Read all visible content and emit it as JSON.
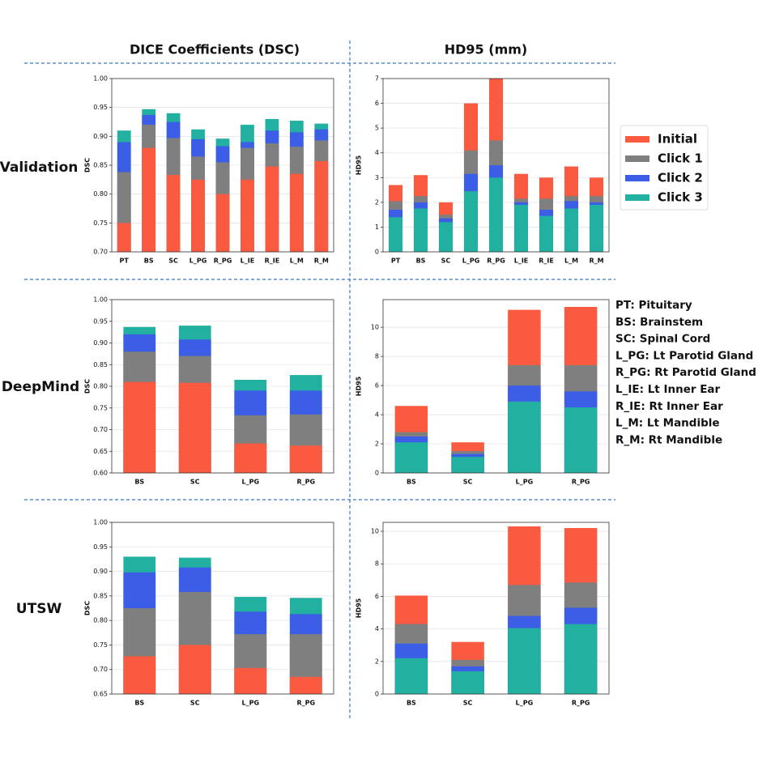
{
  "column_headers": [
    "DICE Coefficients (DSC)",
    "HD95 (mm)"
  ],
  "row_labels": [
    "Validation",
    "DeepMind",
    "UTSW"
  ],
  "abbreviations": [
    "PT: Pituitary",
    "BS: Brainstem",
    "SC: Spinal Cord",
    "L_PG: Lt Parotid Gland",
    "R_PG: Rt Parotid Gland",
    "L_IE: Lt Inner Ear",
    "R_IE: Rt Inner Ear",
    "L_M: Lt Mandible",
    "R_M: Rt Mandible"
  ],
  "chart_data": [
    {
      "type": "bar",
      "ylabel": "DSC",
      "grid": true,
      "categories": [
        "PT",
        "BS",
        "SC",
        "L_PG",
        "R_PG",
        "L_IE",
        "R_IE",
        "L_M",
        "R_M"
      ],
      "ylim": [
        0.7,
        1.0
      ],
      "yticks": [
        {
          "value": 0.7,
          "label": "0.70"
        },
        0.75,
        {
          "value": 0.8,
          "label": "0.80"
        },
        0.85,
        {
          "value": 0.9,
          "label": "0.90"
        },
        0.95,
        {
          "value": 1.0,
          "label": "1.00"
        }
      ],
      "series": [
        {
          "name": "Initial",
          "color": "#fa5b40",
          "values": [
            0.75,
            0.88,
            0.833,
            0.825,
            0.8,
            0.825,
            0.848,
            0.835,
            0.857
          ]
        },
        {
          "name": "Click 1",
          "color": "#7f7f7f",
          "values": [
            0.838,
            0.92,
            0.897,
            0.865,
            0.855,
            0.88,
            0.888,
            0.882,
            0.893
          ]
        },
        {
          "name": "Click 2",
          "color": "#3c5ee6",
          "values": [
            0.89,
            0.937,
            0.925,
            0.895,
            0.883,
            0.89,
            0.91,
            0.907,
            0.912
          ]
        },
        {
          "name": "Click 3",
          "color": "#22b0a0",
          "values": [
            0.91,
            0.947,
            0.94,
            0.912,
            0.896,
            0.92,
            0.93,
            0.927,
            0.922
          ]
        }
      ]
    },
    {
      "type": "bar",
      "ylabel": "HD95",
      "grid": true,
      "legend": "right",
      "categories": [
        "PT",
        "BS",
        "SC",
        "L_PG",
        "R_PG",
        "L_IE",
        "R_IE",
        "L_M",
        "R_M"
      ],
      "ylim": [
        0,
        7
      ],
      "yticks": [
        0,
        1,
        2,
        3,
        4,
        5,
        6,
        7
      ],
      "series": [
        {
          "name": "Initial",
          "color": "#fa5b40",
          "values": [
            2.7,
            3.1,
            2.0,
            6.0,
            7.0,
            3.15,
            3.0,
            3.45,
            3.0
          ]
        },
        {
          "name": "Click 1",
          "color": "#7f7f7f",
          "values": [
            2.05,
            2.25,
            1.5,
            4.1,
            4.5,
            2.15,
            2.15,
            2.25,
            2.25
          ]
        },
        {
          "name": "Click 2",
          "color": "#3c5ee6",
          "values": [
            1.7,
            2.0,
            1.35,
            3.15,
            3.5,
            2.0,
            1.7,
            2.05,
            2.0
          ]
        },
        {
          "name": "Click 3",
          "color": "#22b0a0",
          "values": [
            1.4,
            1.75,
            1.2,
            2.45,
            3.0,
            1.9,
            1.45,
            1.75,
            1.9
          ]
        }
      ]
    },
    {
      "type": "bar",
      "ylabel": "DSC",
      "grid": true,
      "categories": [
        "BS",
        "SC",
        "L_PG",
        "R_PG"
      ],
      "ylim": [
        0.6,
        1.0
      ],
      "yticks": [
        {
          "value": 0.6,
          "label": "0.60"
        },
        0.65,
        {
          "value": 0.7,
          "label": "0.70"
        },
        0.75,
        {
          "value": 0.8,
          "label": "0.80"
        },
        0.85,
        {
          "value": 0.9,
          "label": "0.90"
        },
        0.95,
        {
          "value": 1.0,
          "label": "1.00"
        }
      ],
      "series": [
        {
          "name": "Initial",
          "color": "#fa5b40",
          "values": [
            0.81,
            0.808,
            0.668,
            0.663
          ]
        },
        {
          "name": "Click 1",
          "color": "#7f7f7f",
          "values": [
            0.88,
            0.87,
            0.733,
            0.735
          ]
        },
        {
          "name": "Click 2",
          "color": "#3c5ee6",
          "values": [
            0.92,
            0.908,
            0.79,
            0.79
          ]
        },
        {
          "name": "Click 3",
          "color": "#22b0a0",
          "values": [
            0.937,
            0.94,
            0.815,
            0.826
          ]
        }
      ]
    },
    {
      "type": "bar",
      "ylabel": "HD95",
      "grid": true,
      "categories": [
        "BS",
        "SC",
        "L_PG",
        "R_PG"
      ],
      "ylim": [
        0,
        11.9
      ],
      "yticks": [
        0,
        2,
        4,
        6,
        8,
        10
      ],
      "series": [
        {
          "name": "Initial",
          "color": "#fa5b40",
          "values": [
            4.6,
            2.1,
            11.2,
            11.4
          ]
        },
        {
          "name": "Click 1",
          "color": "#7f7f7f",
          "values": [
            2.8,
            1.5,
            7.4,
            7.4
          ]
        },
        {
          "name": "Click 2",
          "color": "#3c5ee6",
          "values": [
            2.5,
            1.3,
            6.0,
            5.6
          ]
        },
        {
          "name": "Click 3",
          "color": "#22b0a0",
          "values": [
            2.1,
            1.1,
            4.9,
            4.5
          ]
        }
      ]
    },
    {
      "type": "bar",
      "ylabel": "DSC",
      "grid": true,
      "categories": [
        "BS",
        "SC",
        "L_PG",
        "R_PG"
      ],
      "ylim": [
        0.65,
        1.0
      ],
      "yticks": [
        0.65,
        {
          "value": 0.7,
          "label": "0.70"
        },
        0.75,
        {
          "value": 0.8,
          "label": "0.80"
        },
        0.85,
        {
          "value": 0.9,
          "label": "0.90"
        },
        0.95,
        {
          "value": 1.0,
          "label": "1.00"
        }
      ],
      "series": [
        {
          "name": "Initial",
          "color": "#fa5b40",
          "values": [
            0.727,
            0.75,
            0.703,
            0.685
          ]
        },
        {
          "name": "Click 1",
          "color": "#7f7f7f",
          "values": [
            0.825,
            0.858,
            0.772,
            0.772
          ]
        },
        {
          "name": "Click 2",
          "color": "#3c5ee6",
          "values": [
            0.898,
            0.908,
            0.818,
            0.813
          ]
        },
        {
          "name": "Click 3",
          "color": "#22b0a0",
          "values": [
            0.93,
            0.928,
            0.848,
            0.846
          ]
        }
      ]
    },
    {
      "type": "bar",
      "ylabel": "HD95",
      "grid": true,
      "categories": [
        "BS",
        "SC",
        "L_PG",
        "R_PG"
      ],
      "ylim": [
        0,
        10.55
      ],
      "yticks": [
        0,
        2,
        4,
        6,
        8,
        10
      ],
      "series": [
        {
          "name": "Initial",
          "color": "#fa5b40",
          "values": [
            6.05,
            3.2,
            10.3,
            10.2
          ]
        },
        {
          "name": "Click 1",
          "color": "#7f7f7f",
          "values": [
            4.3,
            2.1,
            6.7,
            6.85
          ]
        },
        {
          "name": "Click 2",
          "color": "#3c5ee6",
          "values": [
            3.1,
            1.7,
            4.8,
            5.3
          ]
        },
        {
          "name": "Click 3",
          "color": "#22b0a0",
          "values": [
            2.2,
            1.4,
            4.05,
            4.3
          ]
        }
      ]
    }
  ]
}
